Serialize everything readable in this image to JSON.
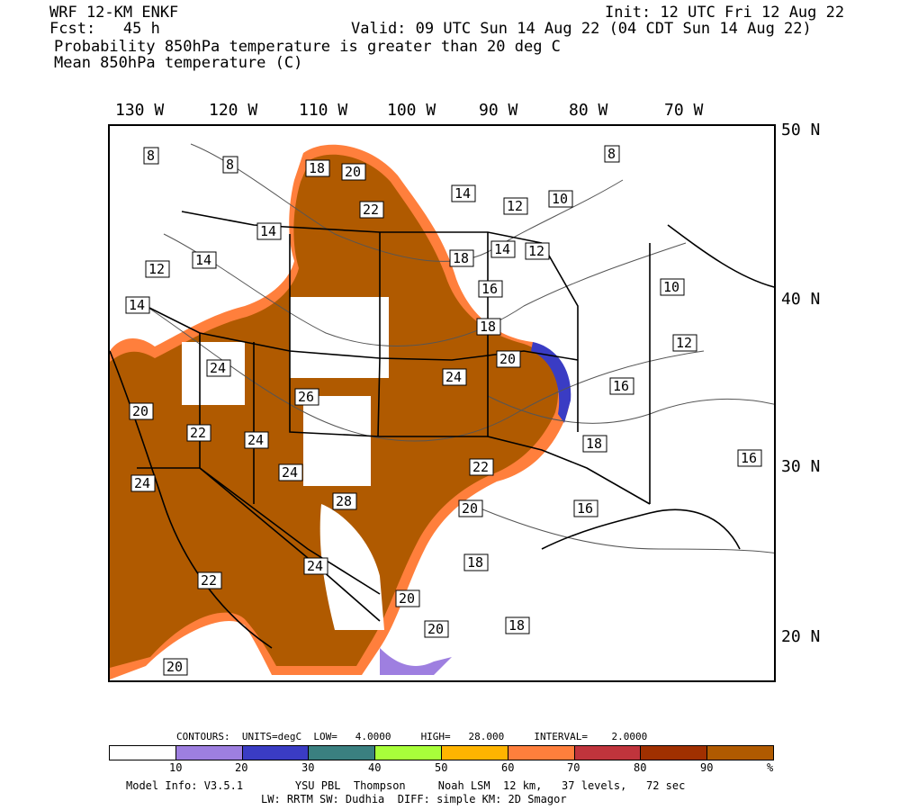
{
  "header": {
    "model": "WRF 12-KM ENKF",
    "fcst": "Fcst:   45 h",
    "init": "Init: 12 UTC Fri 12 Aug 22",
    "valid": "Valid: 09 UTC Sun 14 Aug 22 (04 CDT Sun 14 Aug 22)",
    "line1": "Probability 850hPa temperature is greater than 20 deg C",
    "line2": "Mean 850hPa temperature (C)"
  },
  "longitudes": [
    "130 W",
    "120 W",
    "110 W",
    "100 W",
    "90 W",
    "80 W",
    "70 W"
  ],
  "latitudes": [
    "50 N",
    "40 N",
    "30 N",
    "20 N"
  ],
  "contour_labels": [
    "8",
    "8",
    "18",
    "20",
    "8",
    "22",
    "14",
    "12",
    "10",
    "14",
    "18",
    "14",
    "12",
    "12",
    "14",
    "16",
    "10",
    "14",
    "24",
    "18",
    "24",
    "12",
    "20",
    "26",
    "24",
    "16",
    "20",
    "22",
    "24",
    "18",
    "22",
    "16",
    "24",
    "28",
    "20",
    "16",
    "22",
    "24",
    "18",
    "20",
    "18",
    "20",
    "20"
  ],
  "contours_info": {
    "contours": "CONTOURS:",
    "units": "UNITS=degC",
    "low": "LOW=   4.0000",
    "high": "HIGH=   28.000",
    "interval": "INTERVAL=    2.0000"
  },
  "colorbar": {
    "colors": [
      "#ffffff",
      "#9e7fe0",
      "#3a3cc4",
      "#3a8080",
      "#a8ff3a",
      "#ffb400",
      "#ff7f3c",
      "#c0343c",
      "#a03000",
      "#b05a00"
    ],
    "ticks": [
      "10",
      "20",
      "30",
      "40",
      "50",
      "60",
      "70",
      "80",
      "90",
      "%"
    ]
  },
  "footer": {
    "line1": "Model Info: V3.5.1        YSU PBL  Thompson     Noah LSM  12 km,   37 levels,   72 sec",
    "line2": "LW: RRTM SW: Dudhia  DIFF: simple KM: 2D Smagor"
  }
}
